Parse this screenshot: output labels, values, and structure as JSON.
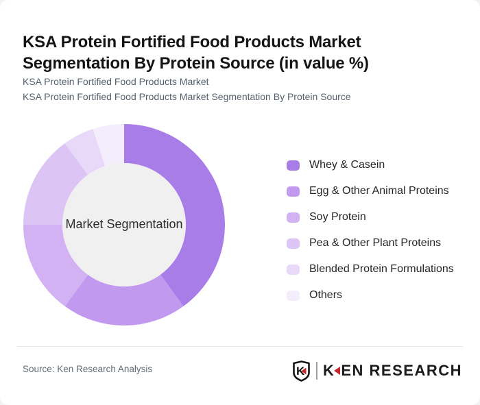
{
  "page": {
    "title": "KSA Protein Fortified Food Products Market Segmentation By Protein Source (in value %)",
    "subtitle_line1": "KSA Protein Fortified Food Products Market",
    "subtitle_line2": "KSA Protein Fortified Food Products Market Segmentation By Protein Source"
  },
  "chart_data": {
    "type": "pie",
    "subtype": "donut",
    "title": "KSA Protein Fortified Food Products Market Segmentation By Protein Source (in value %)",
    "unit": "value %",
    "center_label": "Market Segmentation",
    "start_angle_deg": 0,
    "direction": "clockwise",
    "legend_position": "right",
    "data_labels_shown": false,
    "inner_circle_color": "#f0f0f1",
    "center_label_color": "#2d2d2d",
    "segments": [
      {
        "label": "Whey & Casein",
        "value": 40,
        "color": "#a87de8"
      },
      {
        "label": "Egg & Other Animal Proteins",
        "value": 20,
        "color": "#c19af0"
      },
      {
        "label": "Soy Protein",
        "value": 15,
        "color": "#d2b2f3"
      },
      {
        "label": "Pea & Other Plant Proteins",
        "value": 15,
        "color": "#dcc5f5"
      },
      {
        "label": "Blended Protein Formulations",
        "value": 5,
        "color": "#e8d9f9"
      },
      {
        "label": "Others",
        "value": 5,
        "color": "#f3edfc"
      }
    ]
  },
  "footer": {
    "source_text": "Source: Ken Research Analysis",
    "logo": {
      "emblem_letter": "K",
      "wordmark_k": "K",
      "wordmark_rest": "EN RESEARCH",
      "accent_color": "#c9252c",
      "text_color": "#1c1c1c"
    }
  }
}
